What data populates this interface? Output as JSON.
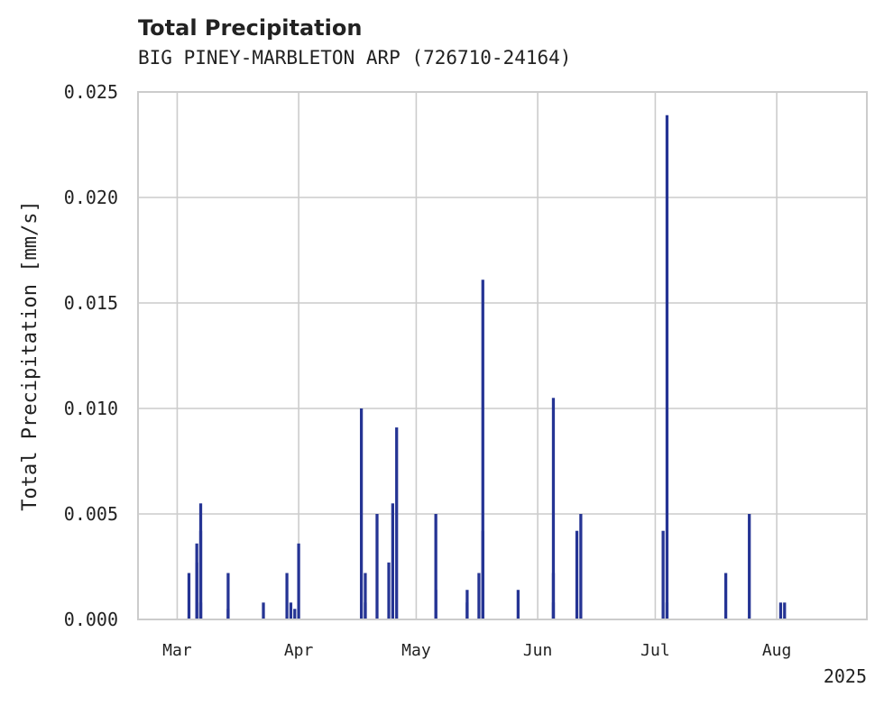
{
  "chart_data": {
    "type": "bar",
    "title": "Total Precipitation",
    "subtitle": "BIG PINEY-MARBLETON ARP (726710-24164)",
    "xlabel": "",
    "ylabel": "Total Precipitation [mm/s]",
    "xlim": [
      "2025-02-19",
      "2025-08-24"
    ],
    "ylim": [
      0,
      0.025
    ],
    "yticks": [
      0.0,
      0.005,
      0.01,
      0.015,
      0.02,
      0.025
    ],
    "ytick_labels": [
      "0.000",
      "0.005",
      "0.010",
      "0.015",
      "0.020",
      "0.025"
    ],
    "xticks": [
      "2025-03-01",
      "2025-04-01",
      "2025-05-01",
      "2025-06-01",
      "2025-07-01",
      "2025-08-01"
    ],
    "xtick_labels": [
      "Mar",
      "Apr",
      "May",
      "Jun",
      "Jul",
      "Aug"
    ],
    "x_offset_label": "2025",
    "grid": true,
    "color": "#253494",
    "points": [
      {
        "x": "2025-03-04",
        "y": 0.0022
      },
      {
        "x": "2025-03-06",
        "y": 0.0027
      },
      {
        "x": "2025-03-06",
        "y": 0.0036
      },
      {
        "x": "2025-03-07",
        "y": 0.0055
      },
      {
        "x": "2025-03-07",
        "y": 0.0042
      },
      {
        "x": "2025-03-07",
        "y": 0.0008
      },
      {
        "x": "2025-03-14",
        "y": 0.0022
      },
      {
        "x": "2025-03-14",
        "y": 0.0005
      },
      {
        "x": "2025-03-23",
        "y": 0.0008
      },
      {
        "x": "2025-03-29",
        "y": 0.0022
      },
      {
        "x": "2025-03-30",
        "y": 0.0008
      },
      {
        "x": "2025-03-31",
        "y": 0.0005
      },
      {
        "x": "2025-04-01",
        "y": 0.0036
      },
      {
        "x": "2025-04-17",
        "y": 0.01
      },
      {
        "x": "2025-04-18",
        "y": 0.0022
      },
      {
        "x": "2025-04-18",
        "y": 0.0008
      },
      {
        "x": "2025-04-21",
        "y": 0.005
      },
      {
        "x": "2025-04-24",
        "y": 0.0027
      },
      {
        "x": "2025-04-25",
        "y": 0.0055
      },
      {
        "x": "2025-04-26",
        "y": 0.0091
      },
      {
        "x": "2025-05-06",
        "y": 0.0014
      },
      {
        "x": "2025-05-06",
        "y": 0.005
      },
      {
        "x": "2025-05-14",
        "y": 0.0014
      },
      {
        "x": "2025-05-14",
        "y": 0.0008
      },
      {
        "x": "2025-05-17",
        "y": 0.0022
      },
      {
        "x": "2025-05-18",
        "y": 0.0161
      },
      {
        "x": "2025-05-18",
        "y": 0.0042
      },
      {
        "x": "2025-05-27",
        "y": 0.0014
      },
      {
        "x": "2025-06-05",
        "y": 0.0105
      },
      {
        "x": "2025-06-05",
        "y": 0.0022
      },
      {
        "x": "2025-06-05",
        "y": 0.0008
      },
      {
        "x": "2025-06-11",
        "y": 0.0042
      },
      {
        "x": "2025-06-12",
        "y": 0.005
      },
      {
        "x": "2025-07-03",
        "y": 0.0042
      },
      {
        "x": "2025-07-04",
        "y": 0.0239
      },
      {
        "x": "2025-07-04",
        "y": 0.0008
      },
      {
        "x": "2025-07-19",
        "y": 0.0022
      },
      {
        "x": "2025-07-25",
        "y": 0.005
      },
      {
        "x": "2025-08-02",
        "y": 0.0008
      },
      {
        "x": "2025-08-03",
        "y": 0.0008
      }
    ]
  }
}
